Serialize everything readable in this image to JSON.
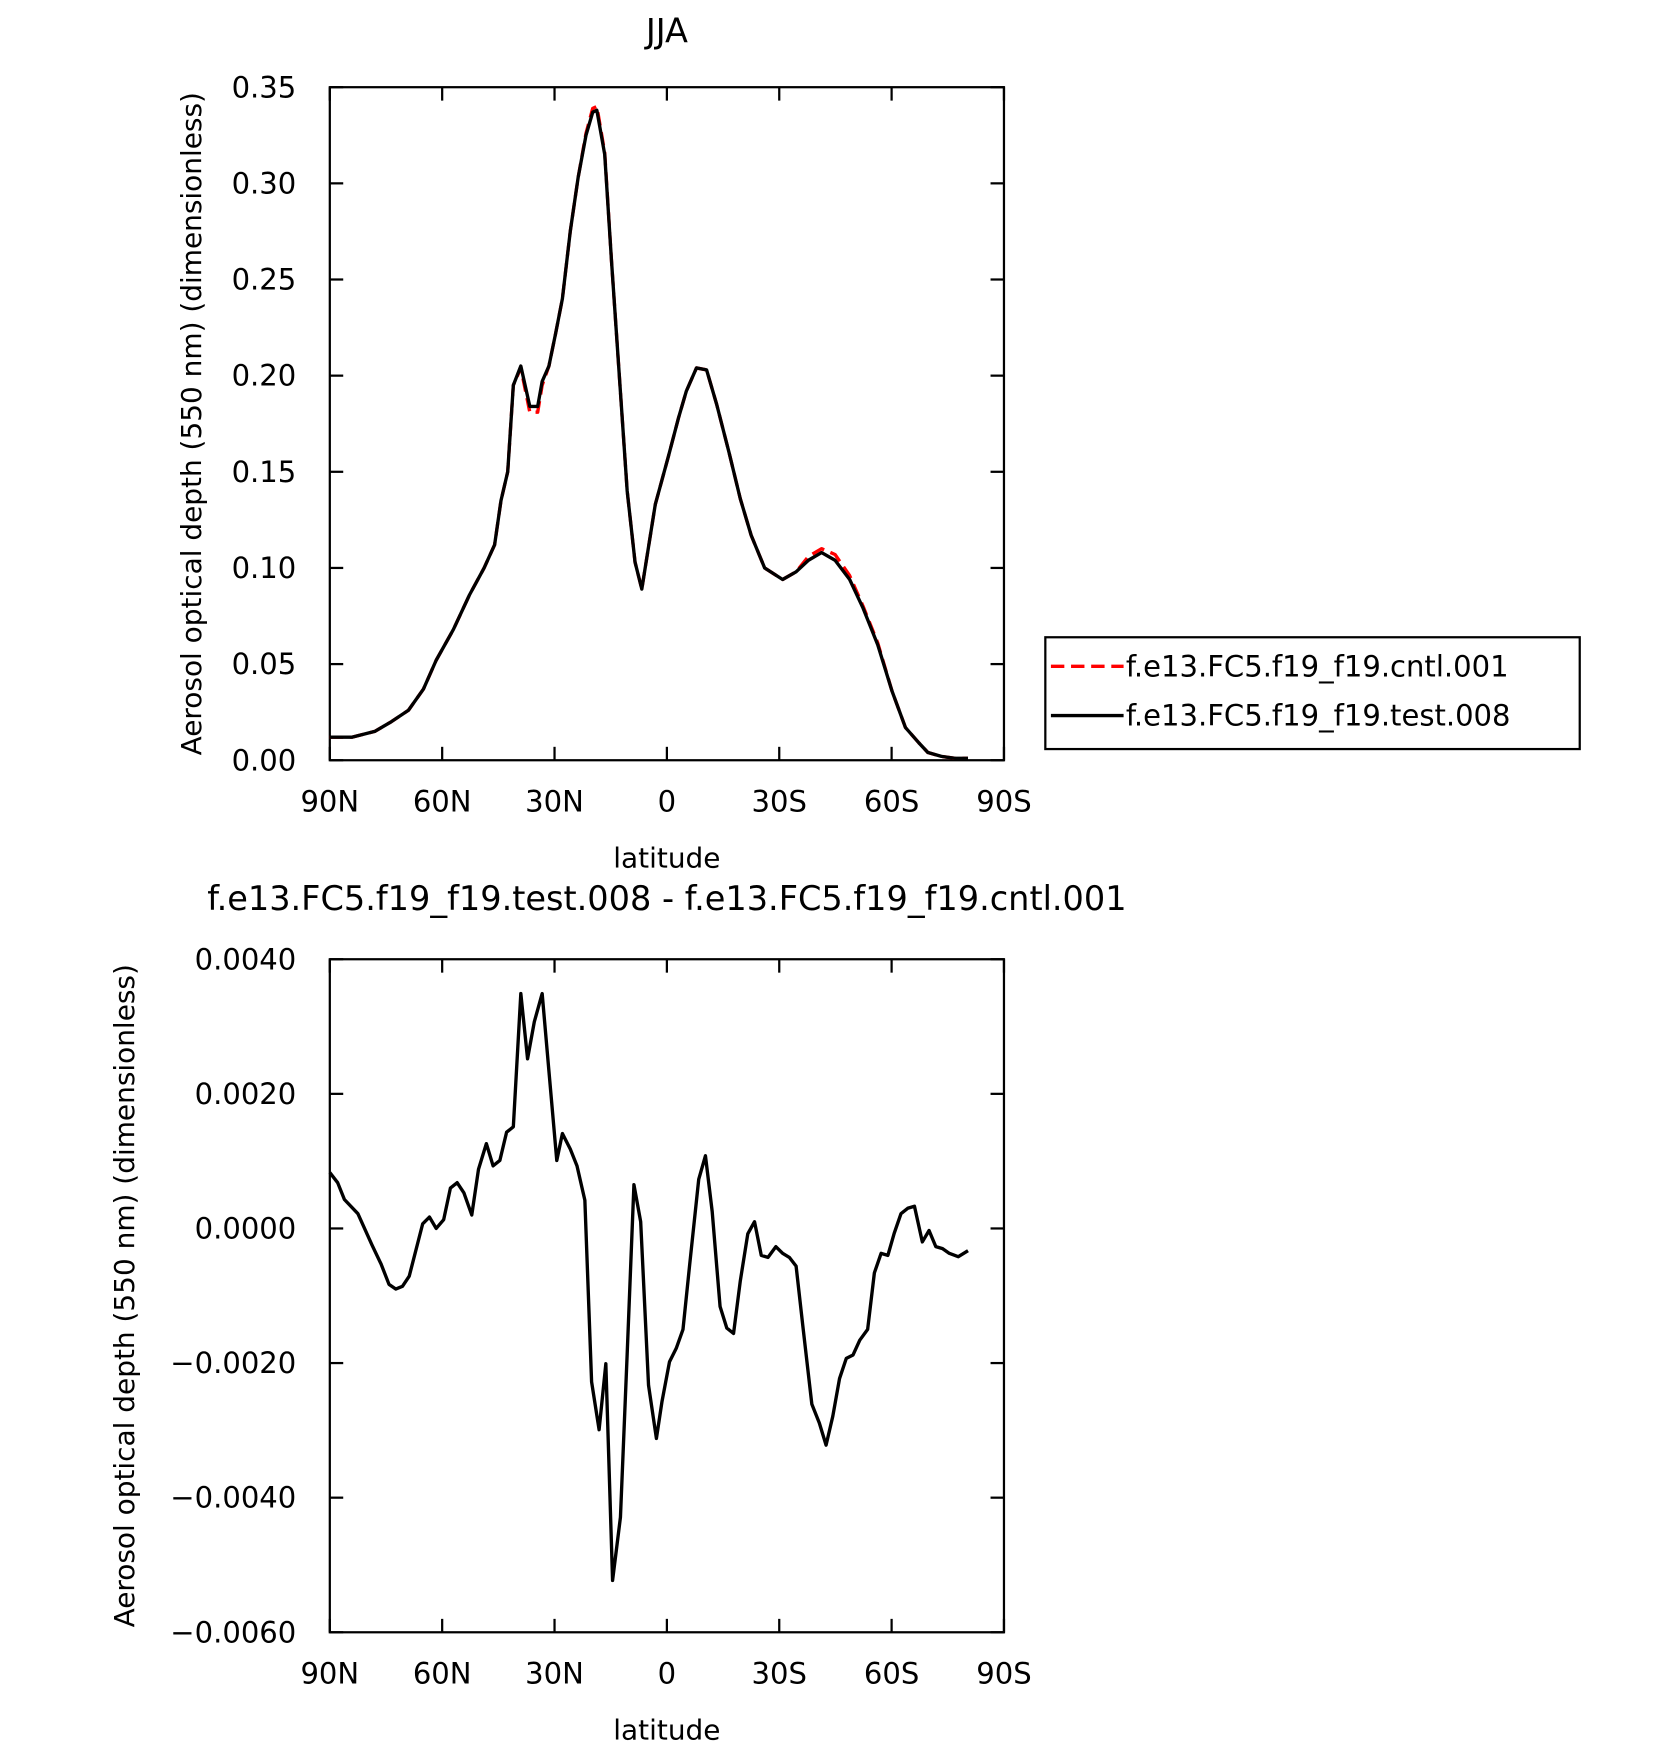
{
  "chart_data": [
    {
      "type": "line",
      "title": "JJA",
      "x_label": "latitude",
      "y_label": "Aerosol optical depth (550 nm) (dimensionless)",
      "x": [
        90,
        84,
        78,
        73.6,
        69,
        65,
        61.6,
        57,
        52.7,
        48.8,
        46,
        44.3,
        42.5,
        41,
        39,
        36.6,
        34.5,
        33.3,
        31.5,
        29.7,
        27.9,
        25.8,
        23.7,
        21.6,
        19.8,
        18.7,
        16.6,
        14.8,
        12.7,
        10.6,
        8.5,
        6.7,
        3.1,
        -0.4,
        -3.1,
        -5.2,
        -7.9,
        -10.6,
        -13.3,
        -16.6,
        -19.6,
        -22.5,
        -26.1,
        -30.9,
        -34.5,
        -37.8,
        -41.3,
        -44.9,
        -48.8,
        -52.4,
        -56.3,
        -60.1,
        -63.7,
        -67.3,
        -69.7,
        -73.3,
        -76.9,
        -80.4
      ],
      "series": [
        {
          "name": "f.e13.FC5.f19_f19.cntl.001",
          "color": "#ff0000",
          "style": "dashed",
          "values": [
            0.012,
            0.012,
            0.015,
            0.02,
            0.026,
            0.037,
            0.052,
            0.068,
            0.086,
            0.1,
            0.112,
            0.135,
            0.15,
            0.195,
            0.204,
            0.181,
            0.181,
            0.195,
            0.205,
            0.222,
            0.24,
            0.275,
            0.303,
            0.326,
            0.339,
            0.34,
            0.316,
            0.26,
            0.2,
            0.14,
            0.103,
            0.089,
            0.133,
            0.158,
            0.178,
            0.192,
            0.204,
            0.203,
            0.185,
            0.16,
            0.136,
            0.117,
            0.1,
            0.094,
            0.098,
            0.106,
            0.11,
            0.107,
            0.096,
            0.08,
            0.061,
            0.036,
            0.017,
            0.009,
            0.004,
            0.002,
            0.001,
            0.001
          ]
        },
        {
          "name": "f.e13.FC5.f19_f19.test.008",
          "color": "#000000",
          "style": "solid",
          "values": [
            0.012,
            0.012,
            0.015,
            0.02,
            0.026,
            0.037,
            0.052,
            0.068,
            0.086,
            0.1,
            0.112,
            0.135,
            0.15,
            0.195,
            0.205,
            0.184,
            0.184,
            0.197,
            0.205,
            0.222,
            0.24,
            0.275,
            0.303,
            0.325,
            0.337,
            0.338,
            0.315,
            0.26,
            0.2,
            0.14,
            0.103,
            0.089,
            0.133,
            0.158,
            0.178,
            0.192,
            0.204,
            0.203,
            0.185,
            0.16,
            0.136,
            0.117,
            0.1,
            0.094,
            0.098,
            0.104,
            0.108,
            0.104,
            0.094,
            0.079,
            0.06,
            0.036,
            0.017,
            0.009,
            0.004,
            0.002,
            0.001,
            0.001
          ]
        }
      ],
      "xlim": [
        90,
        -90
      ],
      "xticks": [
        {
          "value": 90,
          "label": "90N"
        },
        {
          "value": 60,
          "label": "60N"
        },
        {
          "value": 30,
          "label": "30N"
        },
        0,
        {
          "value": -30,
          "label": "30S"
        },
        {
          "value": -60,
          "label": "60S"
        },
        {
          "value": -90,
          "label": "90S"
        }
      ],
      "ylim": [
        0,
        0.35
      ],
      "yticks": [
        {
          "value": 0,
          "label": "0.00"
        },
        0.05,
        {
          "value": 0.1,
          "label": "0.10"
        },
        0.15,
        {
          "value": 0.2,
          "label": "0.20"
        },
        0.25,
        {
          "value": 0.3,
          "label": "0.30"
        },
        0.35
      ],
      "legend": "right"
    },
    {
      "type": "line",
      "title": "f.e13.FC5.f19_f19.test.008 - f.e13.FC5.f19_f19.cntl.001",
      "x_label": "latitude",
      "y_label": "Aerosol optical depth (550 nm) (dimensionless)",
      "x": [
        90,
        87.9,
        86.1,
        82.5,
        78.7,
        76.3,
        74.2,
        72.4,
        70.6,
        68.8,
        65.2,
        63.4,
        61.6,
        59.6,
        57.8,
        56.0,
        54.2,
        52.1,
        50.3,
        48.2,
        46.4,
        44.6,
        42.8,
        41.0,
        39.0,
        37.2,
        35.4,
        33.3,
        31.5,
        29.4,
        27.9,
        25.8,
        24.0,
        21.9,
        20.1,
        18.1,
        16.3,
        14.5,
        12.4,
        10.6,
        8.8,
        7.0,
        4.9,
        2.8,
        1.3,
        -0.7,
        -2.5,
        -4.3,
        -6.1,
        -8.5,
        -10.3,
        -12.1,
        -14.2,
        -16.0,
        -17.8,
        -19.6,
        -21.6,
        -23.4,
        -25.2,
        -27.0,
        -29.1,
        -30.9,
        -32.7,
        -34.5,
        -36.3,
        -38.7,
        -40.7,
        -42.5,
        -44.3,
        -46.1,
        -47.9,
        -49.7,
        -51.5,
        -53.6,
        -55.4,
        -57.2,
        -59.0,
        -60.7,
        -62.5,
        -64.3,
        -66.1,
        -68.2,
        -70.0,
        -71.8,
        -73.6,
        -75.4,
        -77.8,
        -80.4
      ],
      "series": [
        {
          "color": "#000000",
          "style": "solid",
          "values": [
            0.00083,
            0.00068,
            0.00043,
            0.00022,
            -0.00025,
            -0.00053,
            -0.00083,
            -0.0009,
            -0.00086,
            -0.00071,
            7e-05,
            0.00017,
            0,
            0.00013,
            0.0006,
            0.00068,
            0.00053,
            0.0002,
            0.00088,
            0.00126,
            0.00093,
            0.00101,
            0.00143,
            0.00151,
            0.00349,
            0.00252,
            0.00307,
            0.00349,
            0.00234,
            0.00101,
            0.00141,
            0.00118,
            0.00093,
            0.00042,
            -0.00228,
            -0.00299,
            -0.00201,
            -0.00523,
            -0.00429,
            -0.00186,
            0.00065,
            0.0001,
            -0.00233,
            -0.00312,
            -0.00257,
            -0.00198,
            -0.00178,
            -0.0015,
            -0.00053,
            0.00073,
            0.00108,
            0.00025,
            -0.00116,
            -0.00148,
            -0.00156,
            -0.00078,
            -8e-05,
            0.0001,
            -0.0004,
            -0.00043,
            -0.00027,
            -0.00037,
            -0.00043,
            -0.00056,
            -0.00145,
            -0.00261,
            -0.00289,
            -0.00322,
            -0.00279,
            -0.00223,
            -0.00193,
            -0.00188,
            -0.00166,
            -0.0015,
            -0.00066,
            -0.00037,
            -0.0004,
            -7e-05,
            0.00022,
            0.0003,
            0.00033,
            -0.0002,
            -3e-05,
            -0.00027,
            -0.0003,
            -0.00037,
            -0.00042,
            -0.00033
          ]
        }
      ],
      "xlim": [
        90,
        -90
      ],
      "xticks": [
        {
          "value": 90,
          "label": "90N"
        },
        {
          "value": 60,
          "label": "60N"
        },
        {
          "value": 30,
          "label": "30N"
        },
        0,
        {
          "value": -30,
          "label": "30S"
        },
        {
          "value": -60,
          "label": "60S"
        },
        {
          "value": -90,
          "label": "90S"
        }
      ],
      "ylim": [
        -0.006,
        0.004
      ],
      "yticks": [
        {
          "value": -0.006,
          "label": "−0.0060"
        },
        {
          "value": -0.004,
          "label": "−0.0040"
        },
        {
          "value": -0.002,
          "label": "−0.0020"
        },
        {
          "value": 0,
          "label": "0.0000"
        },
        {
          "value": 0.002,
          "label": "0.0020"
        },
        {
          "value": 0.004,
          "label": "0.0040"
        }
      ]
    }
  ]
}
